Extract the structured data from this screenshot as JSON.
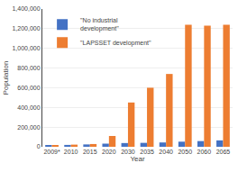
{
  "chart_data": {
    "type": "bar",
    "xlabel": "Year",
    "ylabel": "Population",
    "categories": [
      "2009*",
      "2010",
      "2015",
      "2020",
      "2030",
      "2035",
      "2040",
      "2050",
      "2060",
      "2065"
    ],
    "series": [
      {
        "name": "\"No industrial\ndevelopment\"",
        "color": "#4472c4",
        "values": [
          17000,
          19000,
          24000,
          32000,
          38000,
          40000,
          44000,
          52000,
          58000,
          65000
        ]
      },
      {
        "name": "\"LAPSSET development\"",
        "color": "#ed7d31",
        "values": [
          12000,
          22000,
          28000,
          110000,
          450000,
          600000,
          740000,
          1240000,
          1230000,
          1240000
        ]
      }
    ],
    "ylim": [
      0,
      1400000
    ],
    "yticks": [
      0,
      {
        "value": 200000,
        "label": "200,000"
      },
      {
        "value": 400000,
        "label": "400,000"
      },
      {
        "value": 600000,
        "label": "600,000"
      },
      {
        "value": 800000,
        "label": "800,000"
      },
      {
        "value": 1000000,
        "label": "1,000,000"
      },
      {
        "value": 1200000,
        "label": "1,200,000"
      },
      {
        "value": 1400000,
        "label": "1,400,000"
      }
    ],
    "grid": true,
    "legend": "upper left"
  }
}
